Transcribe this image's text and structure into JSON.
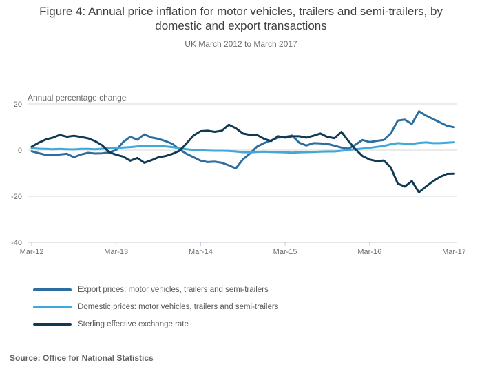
{
  "page": {
    "title": "Figure 4: Annual price inflation for motor vehicles, trailers and semi-trailers, by domestic and export transactions",
    "subtitle": "UK March 2012 to March 2017",
    "source": "Source: Office for National Statistics"
  },
  "chart_data": {
    "type": "line",
    "title": "Figure 4: Annual price inflation for motor vehicles, trailers and semi-trailers, by domestic and export transactions",
    "subtitle": "UK March 2012 to March 2017",
    "ylabel": "Annual percentage change",
    "xlabel": "",
    "x_unit": "monthly, Mar-2012 to Mar-2017",
    "x_tick_labels": [
      "Mar-12",
      "Mar-13",
      "Mar-14",
      "Mar-15",
      "Mar-16",
      "Mar-17"
    ],
    "y_ticks": [
      20,
      0,
      -20,
      -40
    ],
    "ylim": [
      -40,
      20
    ],
    "grid": true,
    "legend_position": "bottom-left",
    "axis_color": "#c3ccd6",
    "grid_color": "#d7d7d7",
    "series": [
      {
        "name": "Export prices: motor vehicles, trailers and semi-trailers",
        "color": "#2d6ea0",
        "values": [
          -0.5,
          -1.3,
          -2.1,
          -2.2,
          -1.9,
          -1.6,
          -3.1,
          -1.9,
          -1.2,
          -1.5,
          -1.4,
          -1.0,
          0.0,
          3.5,
          5.8,
          4.5,
          6.8,
          5.5,
          4.9,
          3.9,
          2.7,
          0.3,
          -1.6,
          -3.1,
          -4.6,
          -5.2,
          -5.0,
          -5.5,
          -6.6,
          -7.9,
          -4.0,
          -1.5,
          1.5,
          3.0,
          4.2,
          5.4,
          5.7,
          6.3,
          3.2,
          2.0,
          3.0,
          2.9,
          2.7,
          1.9,
          1.1,
          0.6,
          2.4,
          4.4,
          3.5,
          4.0,
          4.4,
          7.2,
          12.8,
          13.2,
          11.3,
          16.8,
          15.0,
          13.5,
          12.0,
          10.5,
          9.9
        ]
      },
      {
        "name": "Domestic prices: motor vehicles, trailers and semi-trailers",
        "color": "#3fa9db",
        "values": [
          0.8,
          0.6,
          0.5,
          0.4,
          0.5,
          0.4,
          0.3,
          0.5,
          0.5,
          0.4,
          0.6,
          0.8,
          0.9,
          1.1,
          1.3,
          1.6,
          1.9,
          1.8,
          1.9,
          1.6,
          1.3,
          0.8,
          0.4,
          0.1,
          -0.1,
          -0.2,
          -0.3,
          -0.3,
          -0.4,
          -0.6,
          -0.9,
          -1.0,
          -0.8,
          -0.7,
          -0.8,
          -0.9,
          -1.0,
          -1.1,
          -1.0,
          -0.9,
          -0.8,
          -0.7,
          -0.6,
          -0.6,
          -0.3,
          0.1,
          0.4,
          0.7,
          1.0,
          1.4,
          1.8,
          2.5,
          3.0,
          2.8,
          2.7,
          3.1,
          3.3,
          3.0,
          3.0,
          3.2,
          3.4
        ]
      },
      {
        "name": "Sterling effective exchange rate",
        "color": "#113a52",
        "values": [
          1.5,
          3.2,
          4.6,
          5.4,
          6.6,
          5.8,
          6.2,
          5.7,
          5.1,
          3.9,
          2.1,
          -0.9,
          -2.0,
          -2.8,
          -4.6,
          -3.4,
          -5.5,
          -4.4,
          -3.1,
          -2.6,
          -1.6,
          -0.3,
          2.9,
          6.4,
          8.2,
          8.4,
          7.9,
          8.4,
          11.0,
          9.5,
          7.2,
          6.6,
          6.6,
          4.9,
          3.9,
          6.0,
          5.4,
          6.0,
          6.0,
          5.4,
          6.2,
          7.2,
          5.7,
          5.2,
          7.9,
          3.9,
          0.3,
          -2.6,
          -4.1,
          -4.8,
          -4.5,
          -7.5,
          -14.5,
          -15.8,
          -13.4,
          -18.3,
          -15.8,
          -13.5,
          -11.6,
          -10.3,
          -10.2
        ]
      }
    ]
  }
}
